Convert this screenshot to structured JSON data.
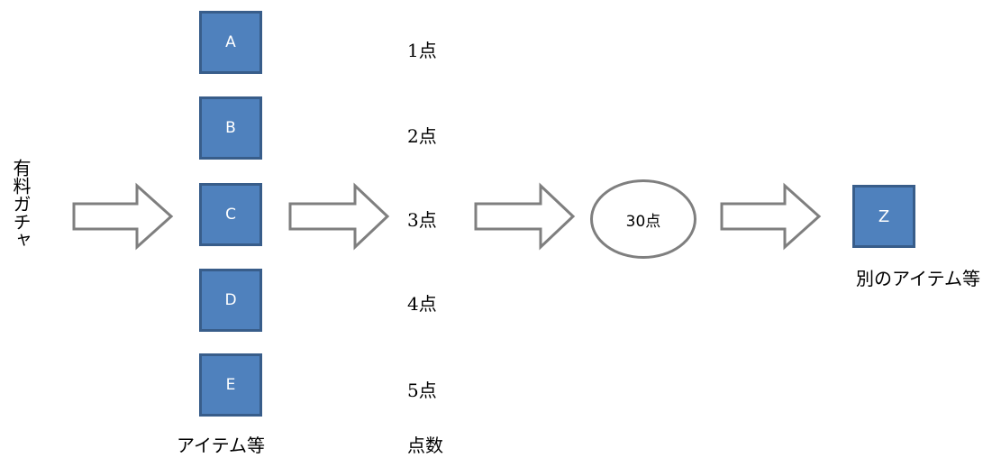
{
  "input": {
    "label": "有料ガチャ"
  },
  "items": [
    {
      "label": "A",
      "points": "1点"
    },
    {
      "label": "B",
      "points": "2点"
    },
    {
      "label": "C",
      "points": "3点"
    },
    {
      "label": "D",
      "points": "4点"
    },
    {
      "label": "E",
      "points": "5点"
    }
  ],
  "items_caption": "アイテム等",
  "points_caption": "点数",
  "threshold": {
    "label": "30点"
  },
  "output": {
    "label": "Z",
    "caption": "別のアイテム等"
  },
  "colors": {
    "box_fill": "#4f81bd",
    "box_border": "#385d8a",
    "arrow_stroke": "#7f7f7f",
    "circle_stroke": "#7f7f7f"
  }
}
